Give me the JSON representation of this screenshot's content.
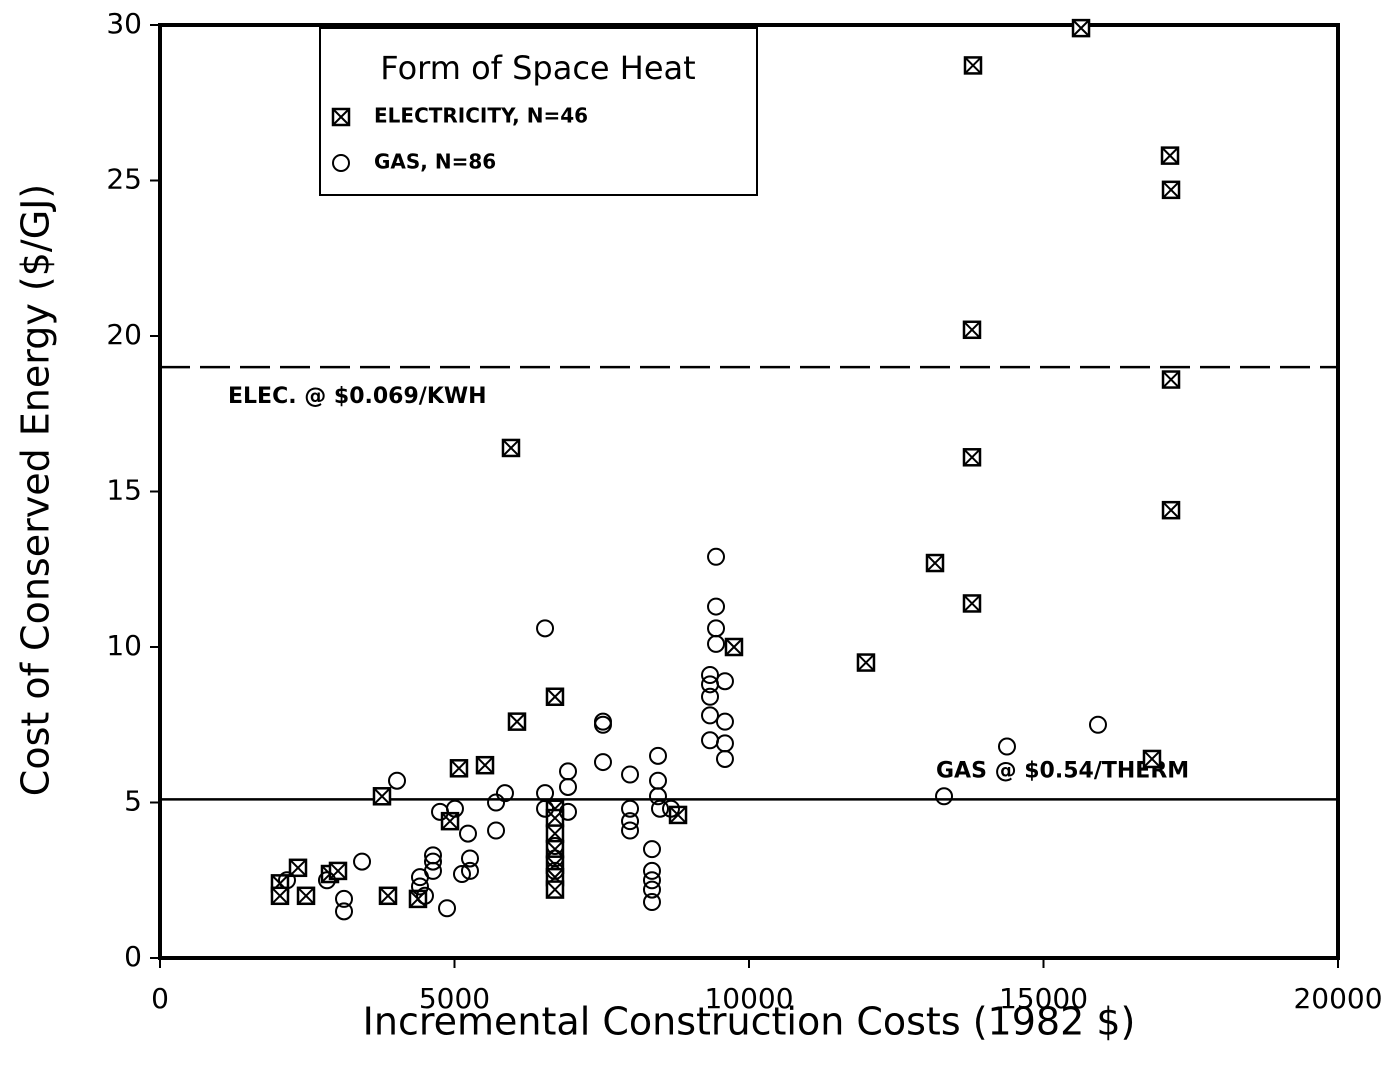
{
  "chart_data": {
    "type": "scatter",
    "xlabel": "Incremental Construction Costs (1982 $)",
    "ylabel": "Cost of Conserved Energy ($/GJ)",
    "xlim": [
      0,
      20000
    ],
    "xticks": [
      0,
      5000,
      10000,
      15000,
      20000
    ],
    "ylim": [
      0,
      30
    ],
    "yticks": [
      0,
      5,
      10,
      15,
      20,
      25,
      30
    ],
    "grid": false,
    "legend": {
      "title": "Form of Space Heat",
      "position": "upper left"
    },
    "series": [
      {
        "name": "ELECTRICITY, N=46",
        "marker": "boxed-x",
        "color": "#000000",
        "x": [
          15637,
          13803,
          17148,
          17165,
          13786,
          17165,
          5959,
          13786,
          17165,
          13158,
          13786,
          9745,
          11986,
          6706,
          6061,
          5076,
          5518,
          16842,
          3769,
          4924,
          8795,
          6706,
          6706,
          6706,
          6706,
          6706,
          6706,
          6706,
          2037,
          2037,
          2479,
          2343,
          2886,
          3022,
          3871,
          4380
        ],
        "values": [
          29.9,
          28.7,
          25.8,
          24.7,
          20.2,
          18.6,
          16.4,
          16.1,
          14.4,
          12.7,
          11.4,
          10.0,
          9.5,
          8.4,
          7.6,
          6.1,
          6.2,
          6.4,
          5.2,
          4.4,
          4.6,
          4.8,
          4.5,
          4.0,
          3.5,
          3.0,
          2.6,
          2.2,
          2.4,
          2.0,
          2.0,
          2.9,
          2.7,
          2.8,
          2.0,
          1.9
        ]
      },
      {
        "name": "GAS, N=86",
        "marker": "circle",
        "color": "#000000",
        "x": [
          9440,
          6537,
          9440,
          9440,
          9440,
          9592,
          9338,
          9338,
          9338,
          9338,
          9338,
          9592,
          9592,
          9592,
          15925,
          14380,
          13311,
          7521,
          7521,
          7521,
          8455,
          6927,
          6927,
          7980,
          8455,
          8455,
          6537,
          6537,
          6927,
          5857,
          5705,
          5705,
          4024,
          4754,
          5008,
          7980,
          7980,
          7980,
          8489,
          5229,
          5263,
          5263,
          5127,
          4635,
          4635,
          4635,
          4414,
          4414,
          4499,
          3430,
          3124,
          3124,
          2835,
          2156,
          4873,
          8353,
          8353,
          8353,
          8353,
          8353,
          6706,
          6706,
          6706,
          8676
        ],
        "values": [
          12.9,
          10.6,
          11.3,
          10.6,
          10.1,
          8.9,
          9.1,
          8.8,
          8.4,
          7.8,
          7.0,
          7.6,
          6.9,
          6.4,
          7.5,
          6.8,
          5.2,
          7.6,
          7.5,
          6.3,
          6.5,
          6.0,
          5.5,
          5.9,
          5.7,
          5.2,
          5.3,
          4.8,
          4.7,
          5.3,
          5.0,
          4.1,
          5.7,
          4.7,
          4.8,
          4.8,
          4.4,
          4.1,
          4.8,
          4.0,
          3.2,
          2.8,
          2.7,
          3.3,
          3.1,
          2.8,
          2.6,
          2.3,
          2.0,
          3.1,
          1.9,
          1.5,
          2.5,
          2.5,
          1.6,
          3.5,
          2.8,
          2.5,
          2.2,
          1.8,
          3.6,
          3.2,
          2.8,
          4.8
        ]
      }
    ],
    "reference_lines": [
      {
        "value": 19.0,
        "label": "ELEC. @ $0.069/KWH",
        "style": "dashed"
      },
      {
        "value": 5.1,
        "label": "GAS @ $0.54/THERM",
        "style": "solid"
      }
    ]
  }
}
